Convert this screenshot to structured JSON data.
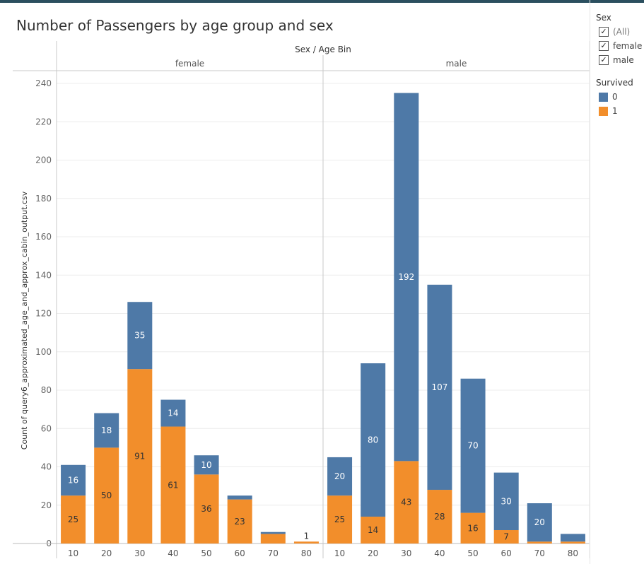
{
  "title": "Number of Passengers by age group and sex",
  "colors": {
    "survived_0": "#4e79a7",
    "survived_1": "#f28e2b",
    "grid": "#ececec",
    "axis": "#c8c8c8"
  },
  "legend": {
    "sex_title": "Sex",
    "sex_filters": [
      {
        "label": "(All)",
        "checked": true,
        "muted": true
      },
      {
        "label": "female",
        "checked": true,
        "muted": false
      },
      {
        "label": "male",
        "checked": true,
        "muted": false
      }
    ],
    "survived_title": "Survived",
    "survived_items": [
      {
        "label": "0",
        "color": "#4e79a7"
      },
      {
        "label": "1",
        "color": "#f28e2b"
      }
    ]
  },
  "chart_data": {
    "type": "bar",
    "stacked": true,
    "header": "Sex / Age Bin",
    "ylabel": "Count of query6_approximated_age_and_approx_cabin_output.csv",
    "ylim": [
      0,
      240
    ],
    "yticks": [
      0,
      20,
      40,
      60,
      80,
      100,
      120,
      140,
      160,
      180,
      200,
      220,
      240
    ],
    "grid": true,
    "panels": [
      {
        "name": "female",
        "categories": [
          "10",
          "20",
          "30",
          "40",
          "50",
          "60",
          "70",
          "80"
        ],
        "series": [
          {
            "name": "1",
            "values": [
              25,
              50,
              91,
              61,
              36,
              23,
              5,
              1
            ],
            "labels": [
              "25",
              "50",
              "91",
              "61",
              "36",
              "23",
              "",
              "1"
            ]
          },
          {
            "name": "0",
            "values": [
              16,
              18,
              35,
              14,
              10,
              2,
              1,
              0
            ],
            "labels": [
              "16",
              "18",
              "35",
              "14",
              "10",
              "",
              "",
              ""
            ]
          }
        ]
      },
      {
        "name": "male",
        "categories": [
          "10",
          "20",
          "30",
          "40",
          "50",
          "60",
          "70",
          "80"
        ],
        "series": [
          {
            "name": "1",
            "values": [
              25,
              14,
              43,
              28,
              16,
              7,
              1,
              1
            ],
            "labels": [
              "25",
              "14",
              "43",
              "28",
              "16",
              "7",
              "",
              ""
            ]
          },
          {
            "name": "0",
            "values": [
              20,
              80,
              192,
              107,
              70,
              30,
              20,
              4
            ],
            "labels": [
              "20",
              "80",
              "192",
              "107",
              "70",
              "30",
              "20",
              ""
            ]
          }
        ]
      }
    ]
  }
}
